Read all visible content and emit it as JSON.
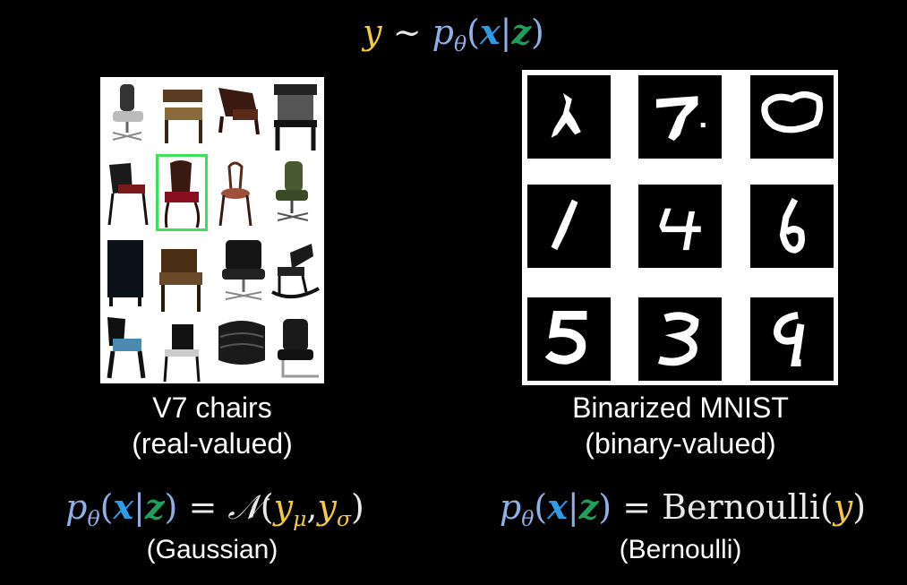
{
  "top_formula": {
    "y": "y",
    "tilde": "~",
    "p": "p",
    "theta": "θ",
    "open": "(",
    "x": "x",
    "bar": "|",
    "z": "z",
    "close": ")"
  },
  "chairs": {
    "caption_line1": "V7 chairs",
    "caption_line2": "(real-valued)",
    "formula": {
      "p": "p",
      "theta": "θ",
      "open": "(",
      "x": "x",
      "bar": "|",
      "z": "z",
      "close": ")",
      "equals": "=",
      "dist": "𝒩",
      "dopen": "(",
      "y1": "y",
      "mu": "μ",
      "comma": ",",
      "y2": "y",
      "sigma": "σ",
      "dclose": ")"
    },
    "note": "(Gaussian)"
  },
  "mnist": {
    "caption_line1": "Binarized MNIST",
    "caption_line2": "(binary-valued)",
    "formula": {
      "p": "p",
      "theta": "θ",
      "open": "(",
      "x": "x",
      "bar": "|",
      "z": "z",
      "close": ")",
      "equals": "=",
      "dist": "Bernoulli",
      "dopen": "(",
      "y": "y",
      "dclose": ")"
    },
    "note": "(Bernoulli)"
  },
  "colors": {
    "y_yellow": "#f4c842",
    "p_lightblue": "#8fb0e6",
    "x_blue": "#2e9be8",
    "z_green": "#1fa05a",
    "highlight_green": "#3ce05a"
  }
}
